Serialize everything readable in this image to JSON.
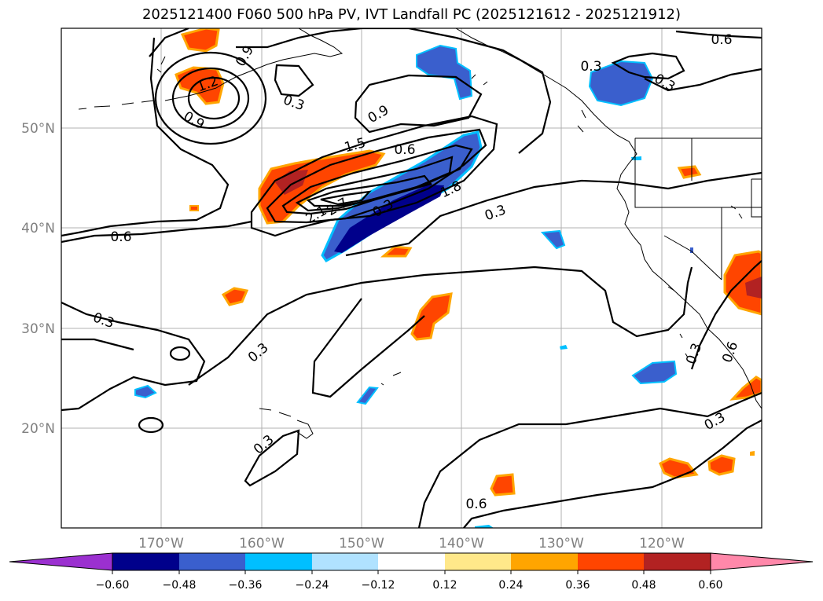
{
  "title": "2025121400 F060 500 hPa PV, IVT Landfall PC (2025121612 - 2025121912)",
  "lat_labels": [
    "50°N",
    "40°N",
    "30°N",
    "20°N"
  ],
  "lon_labels": [
    "170°W",
    "160°W",
    "150°W",
    "140°W",
    "130°W",
    "120°W"
  ],
  "contour_labels": [
    "0.6",
    "0.3",
    "0.3",
    "0.9",
    "1.2",
    "0.9",
    "0.3",
    "0.9",
    "1.5",
    "0.6",
    "1.8",
    "2.1",
    "2.7",
    "0.3",
    "0.3",
    "0.6",
    "0.3",
    "0.3",
    "0.3",
    "0.6",
    "0.3",
    "0.6",
    "0.3"
  ],
  "colorbar": {
    "ticks": [
      "−0.60",
      "−0.48",
      "−0.36",
      "−0.24",
      "−0.12",
      "0.12",
      "0.24",
      "0.36",
      "0.48",
      "0.60"
    ],
    "colors": [
      "#9b30d0",
      "#00008b",
      "#3a5fcd",
      "#00bfff",
      "#b0e2ff",
      "#ffffff",
      "#ffe88a",
      "#ffa500",
      "#ff4500",
      "#b22222",
      "#ff88aa"
    ]
  },
  "colors": {
    "neg_strong": "#00008b",
    "neg_mid": "#3a5fcd",
    "neg_light": "#00bfff",
    "pos_light": "#ffa500",
    "pos_mid": "#ff4500",
    "pos_strong": "#b22222",
    "grid": "#b0b0b0"
  }
}
